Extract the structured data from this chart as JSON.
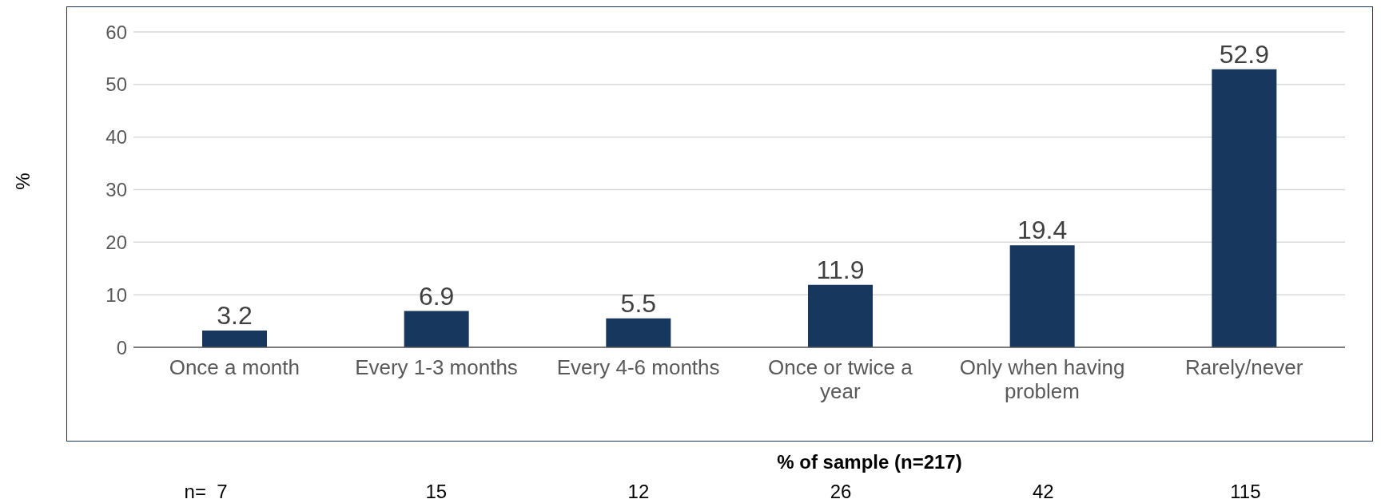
{
  "chart_data": {
    "type": "bar",
    "ylabel": "%",
    "categories": [
      "Once a month",
      "Every 1-3 months",
      "Every 4-6 months",
      "Once or twice a year",
      "Only when having problem",
      "Rarely/never"
    ],
    "values": [
      3.2,
      6.9,
      5.5,
      11.9,
      19.4,
      52.9
    ],
    "color": "#17375e",
    "ylim": [
      0,
      60
    ],
    "yticks": [
      0,
      10,
      20,
      30,
      40,
      50,
      60
    ],
    "grid": "y",
    "data_labels": true,
    "annotations": [
      "% of sample (n=217)",
      "n=  7",
      "15",
      "12",
      "26",
      "42",
      "115"
    ]
  }
}
